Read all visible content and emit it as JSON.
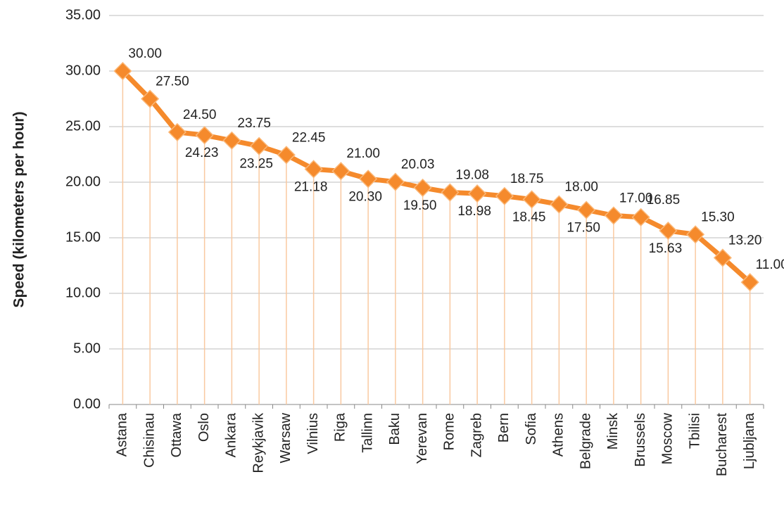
{
  "chart_data": {
    "type": "line",
    "y_label": "Speed (kilometers per hour)",
    "categories": [
      "Astana",
      "Chisinau",
      "Ottawa",
      "Oslo",
      "Ankara",
      "Reykjavik",
      "Warsaw",
      "Vilnius",
      "Riga",
      "Tallinn",
      "Baku",
      "Yerevan",
      "Rome",
      "Zagreb",
      "Bern",
      "Sofia",
      "Athens",
      "Belgrade",
      "Minsk",
      "Brussels",
      "Moscow",
      "Tbilisi",
      "Bucharest",
      "Ljubljana"
    ],
    "series": [
      {
        "color": "#f58a2c",
        "values": [
          30,
          27.5,
          24.5,
          24.23,
          23.75,
          23.25,
          22.45,
          21.18,
          21,
          20.3,
          20.03,
          19.5,
          19.08,
          18.98,
          18.75,
          18.45,
          18,
          17.5,
          17,
          16.85,
          15.63,
          15.3,
          13.2,
          11
        ],
        "value_labels": [
          "30.00",
          "27.50",
          "24.50",
          "24.23",
          "23.75",
          "23.25",
          "22.45",
          "21.18",
          "21.00",
          "20.30",
          "20.03",
          "19.50",
          "19.08",
          "18.98",
          "18.75",
          "18.45",
          "18.00",
          "17.50",
          "17.00",
          "16.85",
          "15.63",
          "15.30",
          "13.20",
          "11.00"
        ]
      }
    ],
    "ylim": [
      0,
      35
    ],
    "yticks": [
      {
        "value": 0,
        "label": "0.00"
      },
      {
        "value": 5,
        "label": "5.00"
      },
      {
        "value": 10,
        "label": "10.00"
      },
      {
        "value": 15,
        "label": "15.00"
      },
      {
        "value": 20,
        "label": "20.00"
      },
      {
        "value": 25,
        "label": "25.00"
      },
      {
        "value": 30,
        "label": "30.00"
      },
      {
        "value": 35,
        "label": "35.00"
      }
    ],
    "grid": true
  }
}
